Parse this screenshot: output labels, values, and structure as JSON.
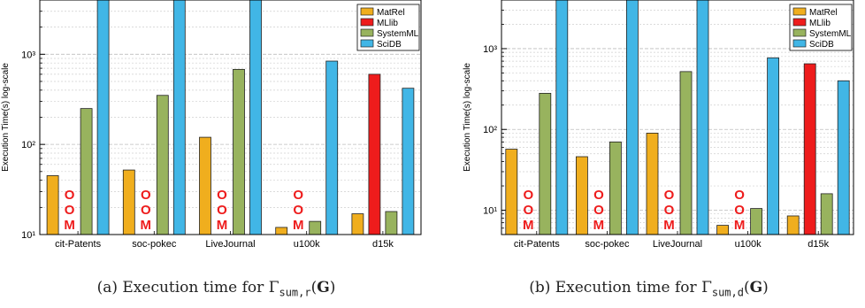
{
  "chart_data": [
    {
      "type": "bar",
      "ylabel": "Execution Time(s) log-scale",
      "yscale": "log",
      "ylim": [
        10,
        4000
      ],
      "yticks": [
        {
          "value": 10,
          "label": "10¹"
        },
        {
          "value": 100,
          "label": "10²"
        },
        {
          "value": 1000,
          "label": "10³"
        }
      ],
      "grid": true,
      "legend_position": "top-right",
      "categories": [
        "cit-Patents",
        "soc-pokec",
        "LiveJournal",
        "u100k",
        "d15k"
      ],
      "series": [
        {
          "name": "MatRel",
          "color": "#f0ae1e",
          "values": [
            45,
            52,
            120,
            12,
            17
          ]
        },
        {
          "name": "MLlib",
          "color": "#ee1c1c",
          "values": [
            null,
            null,
            null,
            null,
            600
          ]
        },
        {
          "name": "SystemML",
          "color": "#98b35e",
          "values": [
            250,
            350,
            680,
            14,
            18
          ]
        },
        {
          "name": "SciDB",
          "color": "#41b6e6",
          "values": [
            4000,
            4000,
            4000,
            840,
            420
          ]
        }
      ],
      "annotations": [
        {
          "text": "OOM",
          "category": "cit-Patents",
          "series": "MLlib"
        },
        {
          "text": "OOM",
          "category": "soc-pokec",
          "series": "MLlib"
        },
        {
          "text": "OOM",
          "category": "LiveJournal",
          "series": "MLlib"
        },
        {
          "text": "OOM",
          "category": "u100k",
          "series": "MLlib"
        }
      ],
      "caption_prefix": "(a) Execution time for ",
      "caption_sub": "sum,r"
    },
    {
      "type": "bar",
      "ylabel": "Execution Time(s) log-scale",
      "yscale": "log",
      "ylim": [
        5,
        4000
      ],
      "yticks": [
        {
          "value": 10,
          "label": "10¹"
        },
        {
          "value": 100,
          "label": "10²"
        },
        {
          "value": 1000,
          "label": "10³"
        }
      ],
      "grid": true,
      "legend_position": "top-right",
      "categories": [
        "cit-Patents",
        "soc-pokec",
        "LiveJournal",
        "u100k",
        "d15k"
      ],
      "series": [
        {
          "name": "MatRel",
          "color": "#f0ae1e",
          "values": [
            57,
            46,
            90,
            6.5,
            8.5
          ]
        },
        {
          "name": "MLlib",
          "color": "#ee1c1c",
          "values": [
            null,
            null,
            null,
            null,
            650
          ]
        },
        {
          "name": "SystemML",
          "color": "#98b35e",
          "values": [
            280,
            70,
            520,
            10.5,
            16
          ]
        },
        {
          "name": "SciDB",
          "color": "#41b6e6",
          "values": [
            4000,
            4000,
            4000,
            770,
            400
          ]
        }
      ],
      "annotations": [
        {
          "text": "OOM",
          "category": "cit-Patents",
          "series": "MLlib"
        },
        {
          "text": "OOM",
          "category": "soc-pokec",
          "series": "MLlib"
        },
        {
          "text": "OOM",
          "category": "LiveJournal",
          "series": "MLlib"
        },
        {
          "text": "OOM",
          "category": "u100k",
          "series": "MLlib"
        }
      ],
      "caption_prefix": "(b) Execution time for ",
      "caption_sub": "sum,d"
    }
  ]
}
